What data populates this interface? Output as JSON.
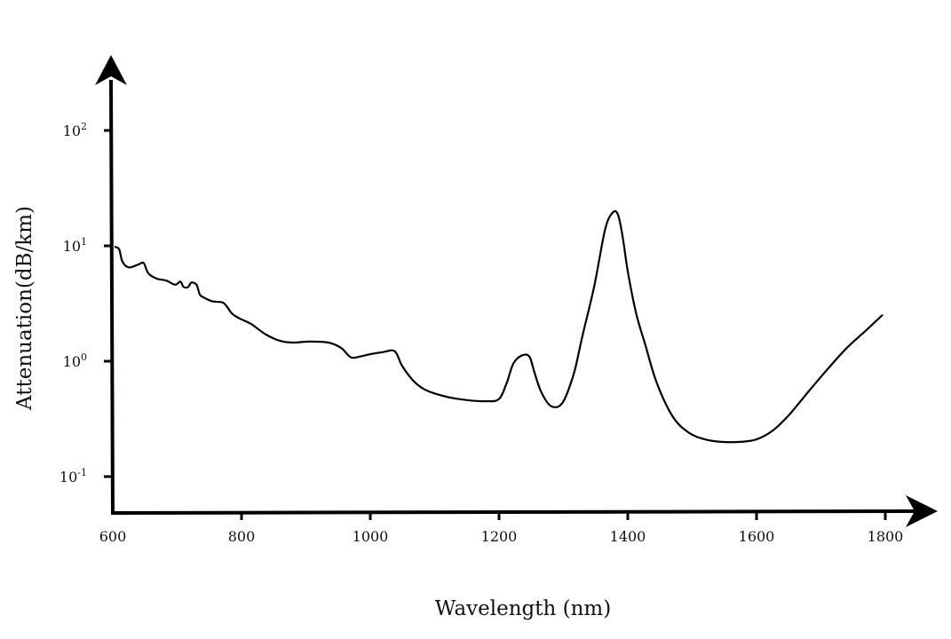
{
  "chart_data": {
    "type": "line",
    "title": "",
    "xlabel": "Wavelength (nm)",
    "ylabel": "Attenuation(dB/km)",
    "y_scale": "log",
    "grid": false,
    "legend": "none",
    "line_color": "#000000",
    "xlim": [
      600,
      1800
    ],
    "ylim": [
      0.05,
      300
    ],
    "x_ticks": [
      600,
      800,
      1000,
      1200,
      1400,
      1600,
      1800
    ],
    "y_ticks": [
      {
        "value": 0.1,
        "base": "10",
        "exp": "-1"
      },
      {
        "value": 1,
        "base": "10",
        "exp": "0"
      },
      {
        "value": 10,
        "base": "10",
        "exp": "1"
      },
      {
        "value": 100,
        "base": "10",
        "exp": "2"
      }
    ],
    "series": [
      {
        "x": [
          604,
          610,
          615,
          625,
          640,
          648,
          655,
          668,
          683,
          697,
          705,
          710,
          717,
          722,
          730,
          735,
          740,
          755,
          772,
          785,
          797,
          815,
          838,
          860,
          880,
          905,
          935,
          955,
          970,
          985,
          1000,
          1020,
          1038,
          1050,
          1070,
          1090,
          1120,
          1150,
          1180,
          1200,
          1212,
          1222,
          1235,
          1247,
          1255,
          1265,
          1278,
          1290,
          1299,
          1307,
          1318,
          1330,
          1348,
          1365,
          1377,
          1385,
          1392,
          1400,
          1413,
          1427,
          1445,
          1470,
          1495,
          1520,
          1545,
          1575,
          1600,
          1625,
          1650,
          1680,
          1710,
          1740,
          1770,
          1795
        ],
        "y": [
          9.8,
          9.3,
          7.3,
          6.5,
          6.9,
          7.1,
          5.8,
          5.2,
          5.0,
          4.6,
          4.9,
          4.4,
          4.4,
          4.8,
          4.6,
          3.8,
          3.6,
          3.3,
          3.2,
          2.6,
          2.35,
          2.1,
          1.7,
          1.5,
          1.45,
          1.48,
          1.45,
          1.3,
          1.08,
          1.1,
          1.15,
          1.2,
          1.22,
          0.9,
          0.65,
          0.55,
          0.49,
          0.46,
          0.45,
          0.47,
          0.65,
          0.95,
          1.12,
          1.1,
          0.8,
          0.55,
          0.42,
          0.4,
          0.44,
          0.55,
          0.85,
          1.7,
          4.5,
          14,
          19.5,
          18.5,
          12,
          6,
          2.6,
          1.4,
          0.65,
          0.33,
          0.24,
          0.21,
          0.2,
          0.2,
          0.21,
          0.25,
          0.34,
          0.54,
          0.85,
          1.3,
          1.85,
          2.5
        ]
      }
    ]
  }
}
